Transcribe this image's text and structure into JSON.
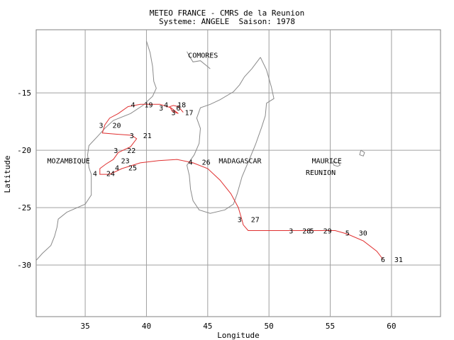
{
  "header": {
    "title": "METEO FRANCE - CMRS de la Reunion",
    "subtitle": "Systeme: ANGELE  Saison: 1978"
  },
  "colors": {
    "track": "#e03030",
    "grid": "#a0a0a0",
    "coast": "#8a8a8a",
    "text": "#000000"
  },
  "axes": {
    "xlabel": "Longitude",
    "ylabel": "Latitude",
    "xlim": [
      31,
      64
    ],
    "ylim": [
      -34.5,
      -9.5
    ],
    "xticks": [
      35,
      40,
      45,
      50,
      55,
      60
    ],
    "yticks": [
      -15,
      -20,
      -25,
      -30
    ]
  },
  "places": [
    {
      "name": "COMORES",
      "lon": 43.4,
      "lat": -11.7
    },
    {
      "name": "MOZAMBIQUE",
      "lon": 31.9,
      "lat": -20.9
    },
    {
      "name": "MADAGASCAR",
      "lon": 45.9,
      "lat": -20.9
    },
    {
      "name": "MAURICE",
      "lon": 53.5,
      "lat": -20.9
    },
    {
      "name": "REUNION",
      "lon": 53.0,
      "lat": -21.9
    }
  ],
  "track": [
    [
      43.0,
      -16.7
    ],
    [
      42.6,
      -16.2
    ],
    [
      42.2,
      -16.1
    ],
    [
      41.9,
      -16.2
    ],
    [
      42.1,
      -16.6
    ],
    [
      42.6,
      -16.8
    ],
    [
      42.0,
      -16.3
    ],
    [
      41.1,
      -16.0
    ],
    [
      39.5,
      -16.0
    ],
    [
      38.5,
      -16.2
    ],
    [
      37.7,
      -16.8
    ],
    [
      37.0,
      -17.2
    ],
    [
      36.6,
      -17.8
    ],
    [
      36.4,
      -18.5
    ],
    [
      37.5,
      -18.6
    ],
    [
      38.8,
      -18.7
    ],
    [
      39.2,
      -19.0
    ],
    [
      38.7,
      -19.7
    ],
    [
      37.7,
      -20.2
    ],
    [
      37.3,
      -20.8
    ],
    [
      36.7,
      -21.2
    ],
    [
      36.2,
      -21.6
    ],
    [
      36.2,
      -22.1
    ],
    [
      37.0,
      -22.1
    ],
    [
      38.0,
      -21.6
    ],
    [
      39.5,
      -21.1
    ],
    [
      41.0,
      -20.9
    ],
    [
      42.5,
      -20.8
    ],
    [
      43.8,
      -21.1
    ],
    [
      45.0,
      -21.6
    ],
    [
      46.0,
      -22.6
    ],
    [
      46.9,
      -23.8
    ],
    [
      47.5,
      -25.0
    ],
    [
      47.8,
      -26.1
    ],
    [
      47.9,
      -26.5
    ],
    [
      48.3,
      -27.0
    ],
    [
      48.6,
      -27.0
    ],
    [
      51.0,
      -27.0
    ],
    [
      53.0,
      -27.0
    ],
    [
      55.4,
      -27.0
    ],
    [
      56.4,
      -27.3
    ],
    [
      57.7,
      -27.9
    ],
    [
      58.8,
      -28.8
    ],
    [
      59.3,
      -29.5
    ]
  ],
  "markers": [
    {
      "hour": "4",
      "day": "18",
      "lon": 41.6,
      "lat": -16.0
    },
    {
      "hour": "3",
      "day": "17",
      "lon": 42.2,
      "lat": -16.7
    },
    {
      "hour": "6",
      "day": "",
      "lon": 42.6,
      "lat": -16.3
    },
    {
      "hour": "3",
      "day": "",
      "lon": 41.2,
      "lat": -16.3
    },
    {
      "hour": "4",
      "day": "19",
      "lon": 38.9,
      "lat": -16.0
    },
    {
      "hour": "3",
      "day": "20",
      "lon": 36.3,
      "lat": -17.8
    },
    {
      "hour": "3",
      "day": "21",
      "lon": 38.8,
      "lat": -18.7
    },
    {
      "hour": "3",
      "day": "22",
      "lon": 37.5,
      "lat": -20.0
    },
    {
      "hour": "",
      "day": "23",
      "lon": 37.0,
      "lat": -20.9
    },
    {
      "hour": "4",
      "day": "25",
      "lon": 37.6,
      "lat": -21.5
    },
    {
      "hour": "4",
      "day": "24",
      "lon": 35.8,
      "lat": -22.0
    },
    {
      "hour": "4",
      "day": "26",
      "lon": 43.6,
      "lat": -21.0
    },
    {
      "hour": "3",
      "day": "27",
      "lon": 47.6,
      "lat": -26.0
    },
    {
      "hour": "3",
      "day": "28",
      "lon": 51.8,
      "lat": -27.0
    },
    {
      "hour": "5",
      "day": "29",
      "lon": 53.5,
      "lat": -27.0
    },
    {
      "hour": "5",
      "day": "30",
      "lon": 56.4,
      "lat": -27.2
    },
    {
      "hour": "6",
      "day": "31",
      "lon": 59.3,
      "lat": -29.5
    }
  ],
  "coastlines": {
    "africa": [
      [
        40.0,
        -10.5
      ],
      [
        40.3,
        -11.5
      ],
      [
        40.5,
        -12.7
      ],
      [
        40.6,
        -14.0
      ],
      [
        40.8,
        -14.6
      ],
      [
        40.5,
        -15.3
      ],
      [
        39.7,
        -16.1
      ],
      [
        38.7,
        -16.8
      ],
      [
        37.3,
        -17.4
      ],
      [
        36.6,
        -18.1
      ],
      [
        36.0,
        -18.8
      ],
      [
        35.3,
        -19.6
      ],
      [
        35.2,
        -20.4
      ],
      [
        35.3,
        -21.5
      ],
      [
        35.5,
        -22.1
      ],
      [
        35.5,
        -23.0
      ],
      [
        35.5,
        -23.9
      ],
      [
        35.0,
        -24.7
      ],
      [
        33.5,
        -25.4
      ],
      [
        32.8,
        -26.0
      ],
      [
        32.7,
        -26.7
      ],
      [
        32.5,
        -27.5
      ],
      [
        32.2,
        -28.3
      ],
      [
        31.5,
        -29.0
      ],
      [
        31.0,
        -29.6
      ]
    ],
    "madagascar": [
      [
        49.3,
        -11.9
      ],
      [
        49.8,
        -13.0
      ],
      [
        50.2,
        -14.5
      ],
      [
        50.4,
        -15.5
      ],
      [
        49.8,
        -15.9
      ],
      [
        49.7,
        -17.0
      ],
      [
        49.4,
        -18.0
      ],
      [
        48.9,
        -19.5
      ],
      [
        48.4,
        -20.8
      ],
      [
        47.8,
        -22.3
      ],
      [
        47.4,
        -23.8
      ],
      [
        47.1,
        -24.7
      ],
      [
        46.4,
        -25.2
      ],
      [
        45.2,
        -25.5
      ],
      [
        44.3,
        -25.2
      ],
      [
        43.8,
        -24.4
      ],
      [
        43.6,
        -23.4
      ],
      [
        43.5,
        -22.2
      ],
      [
        43.3,
        -21.3
      ],
      [
        43.9,
        -20.4
      ],
      [
        44.3,
        -19.4
      ],
      [
        44.4,
        -18.1
      ],
      [
        44.1,
        -17.2
      ],
      [
        44.4,
        -16.3
      ],
      [
        45.2,
        -16.0
      ],
      [
        46.0,
        -15.6
      ],
      [
        47.1,
        -14.9
      ],
      [
        47.6,
        -14.3
      ],
      [
        48.0,
        -13.6
      ],
      [
        48.6,
        -12.9
      ],
      [
        49.3,
        -11.9
      ]
    ],
    "reunion": [
      [
        55.2,
        -21.0
      ],
      [
        55.7,
        -21.1
      ],
      [
        55.8,
        -21.3
      ],
      [
        55.6,
        -21.4
      ],
      [
        55.3,
        -21.3
      ],
      [
        55.2,
        -21.0
      ]
    ],
    "maurice": [
      [
        57.5,
        -20.0
      ],
      [
        57.8,
        -20.2
      ],
      [
        57.7,
        -20.5
      ],
      [
        57.4,
        -20.4
      ],
      [
        57.5,
        -20.0
      ]
    ],
    "comoros": [
      [
        43.3,
        -11.4
      ],
      [
        43.5,
        -11.8
      ],
      [
        43.8,
        -12.3
      ],
      [
        44.4,
        -12.2
      ],
      [
        45.1,
        -12.8
      ],
      [
        45.2,
        -12.9
      ]
    ]
  }
}
